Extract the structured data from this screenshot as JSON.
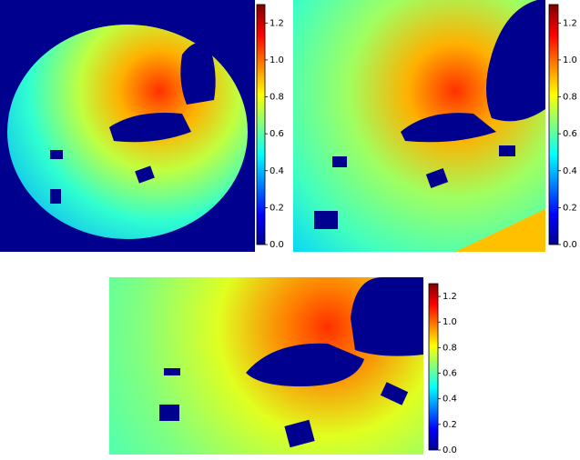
{
  "chart_data": [
    {
      "type": "heatmap",
      "colormap": "jet",
      "clim": [
        0,
        1.3
      ],
      "cticks": [
        {
          "value": 0,
          "label": "0.0"
        },
        0.2,
        0.4,
        0.6,
        0.8,
        {
          "value": 1,
          "label": "1.0"
        },
        1.2
      ]
    },
    {
      "type": "heatmap",
      "colormap": "jet",
      "clim": [
        0,
        1.3
      ],
      "cticks": [
        {
          "value": 0,
          "label": "0.0"
        },
        0.2,
        0.4,
        0.6,
        0.8,
        {
          "value": 1,
          "label": "1.0"
        },
        1.2
      ]
    },
    {
      "type": "heatmap",
      "colormap": "jet",
      "clim": [
        0,
        1.3
      ],
      "cticks": [
        {
          "value": 0,
          "label": "0.0"
        },
        0.2,
        0.4,
        0.6,
        0.8,
        {
          "value": 1,
          "label": "1.0"
        },
        1.2
      ]
    }
  ]
}
